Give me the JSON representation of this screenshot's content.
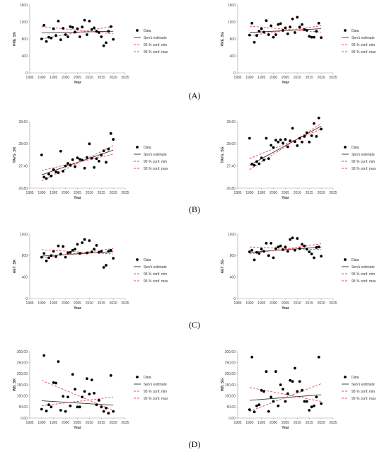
{
  "panel_labels": [
    "(A)",
    "(B)",
    "(C)",
    "(D)"
  ],
  "legend_labels": [
    "Data",
    "Sen's estimate",
    "95 % conf. min",
    "95 % conf. max"
  ],
  "colors": {
    "data": "#000000",
    "sen": "#333333",
    "conf": "#e8474c"
  },
  "chart_data": [
    {
      "type": "scatter",
      "panel": "A",
      "xlabel": "Year",
      "ylabel": "PRE_SK",
      "xlim": [
        1985,
        2025
      ],
      "ylim": [
        0,
        1600
      ],
      "yticks": [
        0,
        400,
        800,
        1200,
        1600
      ],
      "xticks": [
        1985,
        1990,
        1995,
        2000,
        2005,
        2010,
        2015,
        2020,
        2025
      ],
      "ytick_labels": [
        "0",
        "400",
        "800",
        "1200",
        "1600"
      ],
      "x": [
        1990,
        1991,
        1992,
        1993,
        1994,
        1995,
        1996,
        1997,
        1998,
        1999,
        2000,
        2001,
        2002,
        2003,
        2004,
        2005,
        2006,
        2007,
        2008,
        2009,
        2010,
        2011,
        2012,
        2013,
        2014,
        2015,
        2016,
        2017,
        2018,
        2019,
        2020
      ],
      "y": [
        800,
        1120,
        740,
        840,
        820,
        1040,
        880,
        1220,
        780,
        1050,
        900,
        850,
        1090,
        1070,
        960,
        1040,
        850,
        1080,
        1240,
        900,
        1220,
        1020,
        1060,
        980,
        950,
        850,
        640,
        710,
        980,
        1090,
        790
      ],
      "sen": [
        [
          1990,
          940
        ],
        [
          2020,
          980
        ]
      ],
      "conf_min": [
        [
          1990,
          800
        ],
        [
          2020,
          1100
        ]
      ],
      "conf_max": [
        [
          1990,
          1090
        ],
        [
          2020,
          920
        ]
      ]
    },
    {
      "type": "scatter",
      "panel": "A",
      "xlabel": "Year",
      "ylabel": "PRE_SG",
      "xlim": [
        1985,
        2025
      ],
      "ylim": [
        0,
        1600
      ],
      "yticks": [
        0,
        400,
        800,
        1200,
        1600
      ],
      "xticks": [
        1985,
        1990,
        1995,
        2000,
        2005,
        2010,
        2015,
        2020,
        2025
      ],
      "ytick_labels": [
        "0",
        "400",
        "800",
        "1200",
        "1600"
      ],
      "x": [
        1990,
        1991,
        1992,
        1993,
        1994,
        1995,
        1996,
        1997,
        1998,
        1999,
        2000,
        2001,
        2002,
        2003,
        2004,
        2005,
        2006,
        2007,
        2008,
        2009,
        2010,
        2011,
        2012,
        2013,
        2014,
        2015,
        2016,
        2017,
        2018,
        2019,
        2020
      ],
      "y": [
        890,
        1170,
        720,
        880,
        980,
        1040,
        960,
        1230,
        900,
        1110,
        840,
        900,
        1140,
        1160,
        1000,
        1060,
        920,
        1080,
        1270,
        950,
        1310,
        1080,
        1140,
        1020,
        1000,
        860,
        840,
        840,
        980,
        1170,
        830
      ],
      "sen": [
        [
          1990,
          950
        ],
        [
          2020,
          1040
        ]
      ],
      "conf_min": [
        [
          1990,
          880
        ],
        [
          2020,
          1110
        ]
      ],
      "conf_max": [
        [
          1990,
          1100
        ],
        [
          2020,
          960
        ]
      ]
    },
    {
      "type": "scatter",
      "panel": "B",
      "xlabel": "Year",
      "ylabel": "TAVG_SK",
      "xlim": [
        1985,
        2025
      ],
      "ylim": [
        26.8,
        28.6
      ],
      "yticks": [
        26.8,
        27.4,
        28.0,
        28.6
      ],
      "xticks": [
        1985,
        1990,
        1995,
        2000,
        2005,
        2010,
        2015,
        2020,
        2025
      ],
      "ytick_labels": [
        "26.80",
        "27.40",
        "28.00",
        "28.60"
      ],
      "x": [
        1990,
        1991,
        1992,
        1993,
        1994,
        1995,
        1996,
        1997,
        1998,
        1999,
        2000,
        2001,
        2002,
        2003,
        2004,
        2005,
        2006,
        2007,
        2008,
        2009,
        2010,
        2011,
        2012,
        2013,
        2014,
        2015,
        2016,
        2017,
        2018,
        2019,
        2020
      ],
      "y": [
        27.7,
        27.1,
        27.06,
        27.18,
        27.13,
        27.3,
        27.24,
        27.22,
        27.8,
        27.26,
        27.4,
        27.47,
        27.42,
        27.57,
        27.38,
        27.62,
        27.58,
        27.56,
        27.34,
        27.63,
        28.0,
        27.61,
        27.36,
        27.6,
        27.53,
        27.7,
        27.81,
        27.5,
        27.86,
        28.28,
        28.12
      ],
      "sen": [
        [
          1990,
          27.16
        ],
        [
          2020,
          27.83
        ]
      ],
      "conf_min": [
        [
          1990,
          27.0
        ],
        [
          2020,
          27.95
        ]
      ],
      "conf_max": [
        [
          1990,
          27.28
        ],
        [
          2020,
          27.72
        ]
      ]
    },
    {
      "type": "scatter",
      "panel": "B",
      "xlabel": "Year",
      "ylabel": "TAVG_SG",
      "xlim": [
        1985,
        2025
      ],
      "ylim": [
        26.8,
        28.6
      ],
      "yticks": [
        26.8,
        27.4,
        28.0,
        28.6
      ],
      "xticks": [
        1985,
        1990,
        1995,
        2000,
        2005,
        2010,
        2015,
        2020,
        2025
      ],
      "ytick_labels": [
        "26.80",
        "27.40",
        "28.00",
        "28.60"
      ],
      "x": [
        1990,
        1991,
        1992,
        1993,
        1994,
        1995,
        1996,
        1997,
        1998,
        1999,
        2000,
        2001,
        2002,
        2003,
        2004,
        2005,
        2006,
        2007,
        2008,
        2009,
        2010,
        2011,
        2012,
        2013,
        2014,
        2015,
        2016,
        2017,
        2018,
        2019,
        2020
      ],
      "y": [
        28.15,
        27.45,
        27.42,
        27.52,
        27.46,
        27.62,
        27.56,
        28.15,
        27.6,
        27.96,
        27.9,
        28.1,
        28.05,
        28.11,
        28.02,
        28.12,
        27.92,
        28.08,
        28.42,
        28.06,
        27.95,
        28.15,
        28.05,
        28.2,
        28.3,
        28.05,
        28.22,
        28.55,
        28.2,
        28.7,
        28.4
      ],
      "sen": [
        [
          1990,
          27.42
        ],
        [
          2020,
          28.48
        ]
      ],
      "conf_min": [
        [
          1990,
          27.3
        ],
        [
          2020,
          28.55
        ]
      ],
      "conf_max": [
        [
          1990,
          27.6
        ],
        [
          2020,
          28.4
        ]
      ]
    },
    {
      "type": "scatter",
      "panel": "C",
      "xlabel": "Year",
      "ylabel": "AET_SK",
      "xlim": [
        1985,
        2025
      ],
      "ylim": [
        0,
        1200
      ],
      "yticks": [
        0,
        400,
        800,
        1200
      ],
      "xticks": [
        1985,
        1990,
        1995,
        2000,
        2005,
        2010,
        2015,
        2020,
        2025
      ],
      "ytick_labels": [
        "0",
        "400",
        "800",
        "1200"
      ],
      "x": [
        1990,
        1991,
        1992,
        1993,
        1994,
        1995,
        1996,
        1997,
        1998,
        1999,
        2000,
        2001,
        2002,
        2003,
        2004,
        2005,
        2006,
        2007,
        2008,
        2009,
        2010,
        2011,
        2012,
        2013,
        2014,
        2015,
        2016,
        2017,
        2018,
        2019,
        2020
      ],
      "y": [
        770,
        840,
        700,
        760,
        800,
        880,
        780,
        980,
        830,
        970,
        770,
        850,
        860,
        900,
        920,
        1010,
        840,
        1040,
        1100,
        850,
        1080,
        870,
        920,
        990,
        860,
        880,
        580,
        620,
        880,
        900,
        750
      ],
      "sen": [
        [
          1990,
          790
        ],
        [
          2020,
          875
        ]
      ],
      "conf_min": [
        [
          1990,
          760
        ],
        [
          2020,
          930
        ]
      ],
      "conf_max": [
        [
          1990,
          910
        ],
        [
          2020,
          830
        ]
      ]
    },
    {
      "type": "scatter",
      "panel": "C",
      "xlabel": "Year",
      "ylabel": "AET_SG",
      "xlim": [
        1985,
        2025
      ],
      "ylim": [
        0,
        1200
      ],
      "yticks": [
        0,
        400,
        800,
        1200
      ],
      "xticks": [
        1985,
        1990,
        1995,
        2000,
        2005,
        2010,
        2015,
        2020,
        2025
      ],
      "ytick_labels": [
        "0",
        "400",
        "800",
        "1200"
      ],
      "x": [
        1990,
        1991,
        1992,
        1993,
        1994,
        1995,
        1996,
        1997,
        1998,
        1999,
        2000,
        2001,
        2002,
        2003,
        2004,
        2005,
        2006,
        2007,
        2008,
        2009,
        2010,
        2011,
        2012,
        2013,
        2014,
        2015,
        2016,
        2017,
        2018,
        2019,
        2020
      ],
      "y": [
        870,
        900,
        720,
        860,
        840,
        920,
        880,
        1030,
        800,
        1030,
        760,
        930,
        960,
        980,
        910,
        960,
        880,
        1100,
        1130,
        900,
        1120,
        930,
        1010,
        980,
        920,
        870,
        830,
        760,
        950,
        960,
        790
      ],
      "sen": [
        [
          1990,
          860
        ],
        [
          2020,
          960
        ]
      ],
      "conf_min": [
        [
          1990,
          830
        ],
        [
          2020,
          1020
        ]
      ],
      "conf_max": [
        [
          1990,
          960
        ],
        [
          2020,
          910
        ]
      ]
    },
    {
      "type": "scatter",
      "panel": "D",
      "xlabel": "Year",
      "ylabel": "WB_SK",
      "xlim": [
        1985,
        2025
      ],
      "ylim": [
        0,
        300
      ],
      "yticks": [
        0,
        50,
        100,
        150,
        200,
        250,
        300
      ],
      "xticks": [
        1985,
        1990,
        1995,
        2000,
        2005,
        2010,
        2015,
        2020,
        2025
      ],
      "ytick_labels": [
        "0.00",
        "50.00",
        "100.00",
        "150.00",
        "200.00",
        "250.00",
        "300.00"
      ],
      "x": [
        1990,
        1991,
        1992,
        1993,
        1994,
        1995,
        1996,
        1997,
        1998,
        1999,
        2000,
        2001,
        2002,
        2003,
        2004,
        2005,
        2006,
        2007,
        2008,
        2009,
        2010,
        2011,
        2012,
        2013,
        2014,
        2015,
        2016,
        2017,
        2018,
        2019,
        2020
      ],
      "y": [
        40,
        282,
        32,
        60,
        50,
        160,
        158,
        255,
        35,
        98,
        30,
        95,
        55,
        197,
        130,
        50,
        50,
        95,
        120,
        178,
        108,
        172,
        112,
        60,
        80,
        50,
        30,
        45,
        22,
        192,
        30
      ],
      "sen": [
        [
          1990,
          78
        ],
        [
          2020,
          58
        ]
      ],
      "conf_min": [
        [
          1990,
          170
        ],
        [
          2020,
          35
        ]
      ],
      "conf_max": [
        [
          1990,
          55
        ],
        [
          2020,
          95
        ]
      ]
    },
    {
      "type": "scatter",
      "panel": "D",
      "xlabel": "Year",
      "ylabel": "WB_SG",
      "xlim": [
        1985,
        2025
      ],
      "ylim": [
        0,
        300
      ],
      "yticks": [
        0,
        50,
        100,
        150,
        200,
        250,
        300
      ],
      "xticks": [
        1985,
        1990,
        1995,
        2000,
        2005,
        2010,
        2015,
        2020,
        2025
      ],
      "ytick_labels": [
        "0.00",
        "50.00",
        "100.00",
        "150.00",
        "200.00",
        "250.00",
        "300.00"
      ],
      "x": [
        1990,
        1991,
        1992,
        1993,
        1994,
        1995,
        1996,
        1997,
        1998,
        1999,
        2000,
        2001,
        2002,
        2003,
        2004,
        2005,
        2006,
        2007,
        2008,
        2009,
        2010,
        2011,
        2012,
        2013,
        2014,
        2015,
        2016,
        2017,
        2018,
        2019,
        2020
      ],
      "y": [
        38,
        275,
        28,
        55,
        60,
        125,
        120,
        210,
        30,
        95,
        75,
        210,
        55,
        150,
        130,
        75,
        110,
        170,
        165,
        225,
        120,
        165,
        125,
        75,
        75,
        35,
        50,
        55,
        95,
        275,
        65
      ],
      "sen": [
        [
          1990,
          80
        ],
        [
          2020,
          105
        ]
      ],
      "conf_min": [
        [
          1990,
          30
        ],
        [
          2020,
          155
        ]
      ],
      "conf_max": [
        [
          1990,
          138
        ],
        [
          2020,
          75
        ]
      ]
    }
  ]
}
